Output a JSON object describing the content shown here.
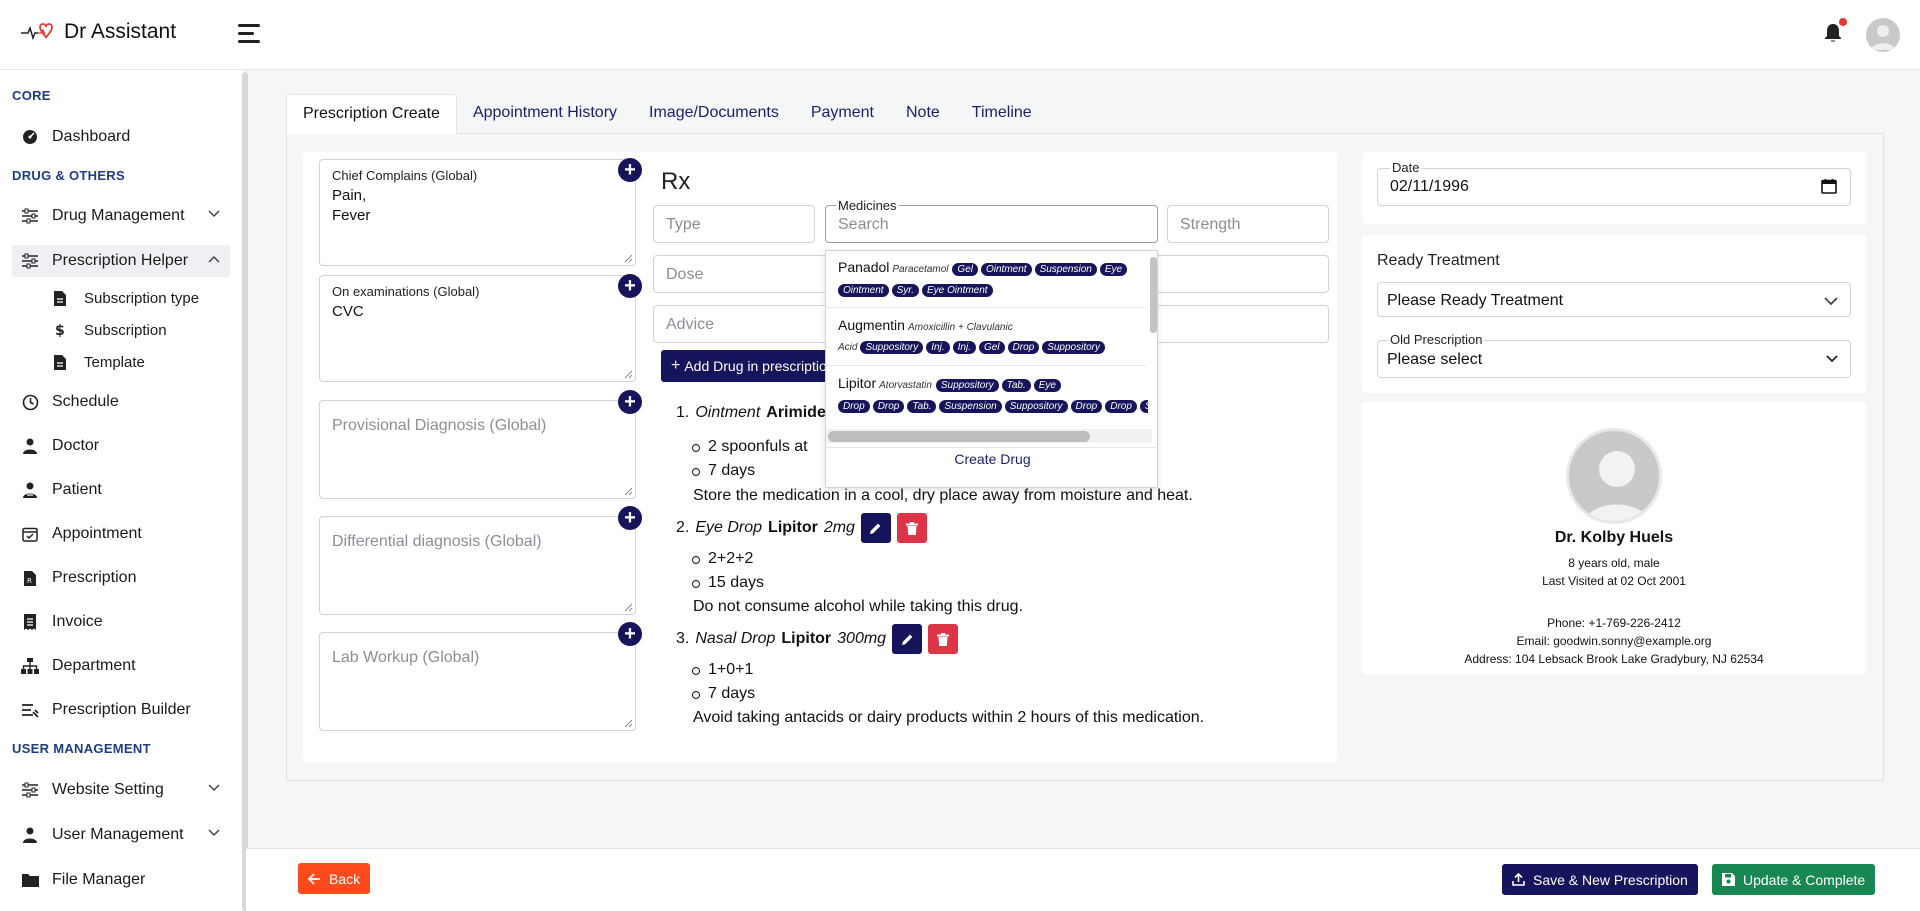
{
  "brand": {
    "name": "Dr Assistant"
  },
  "sidebar": {
    "sections": {
      "core": "CORE",
      "drug": "DRUG & OTHERS",
      "user": "USER MANAGEMENT"
    },
    "items": {
      "dashboard": "Dashboard",
      "drug_management": "Drug Management",
      "prescription_helper": "Prescription Helper",
      "subscription_type": "Subscription type",
      "subscription": "Subscription",
      "template": "Template",
      "schedule": "Schedule",
      "doctor": "Doctor",
      "patient": "Patient",
      "appointment": "Appointment",
      "prescription": "Prescription",
      "invoice": "Invoice",
      "department": "Department",
      "prescription_builder": "Prescription Builder",
      "website_setting": "Website Setting",
      "user_management": "User Management",
      "file_manager": "File Manager"
    }
  },
  "tabs": [
    "Prescription Create",
    "Appointment History",
    "Image/Documents",
    "Payment",
    "Note",
    "Timeline"
  ],
  "clinical": {
    "chief_complains": {
      "legend": "Chief Complains (Global)",
      "line1": "Pain,",
      "line2": "Fever"
    },
    "on_examinations": {
      "legend": "On examinations (Global)",
      "value": "CVC"
    },
    "provisional": {
      "placeholder": "Provisional Diagnosis (Global)"
    },
    "differential": {
      "placeholder": "Differential diagnosis (Global)"
    },
    "lab_workup": {
      "placeholder": "Lab Workup (Global)"
    }
  },
  "rx": {
    "title": "Rx",
    "type_placeholder": "Type",
    "medicines_legend": "Medicines",
    "search_placeholder": "Search",
    "strength_placeholder": "Strength",
    "dose_placeholder": "Dose",
    "advice_placeholder": "Advice",
    "add_drug_label": "Add Drug in prescription",
    "drugs": [
      {
        "num": "1.",
        "type": "Ointment",
        "name": "Arimidex",
        "dose": "2 spoonfuls at",
        "duration": "7 days",
        "advice": "Store the medication in a cool, dry place away from moisture and heat."
      },
      {
        "num": "2.",
        "type": "Eye Drop",
        "name": "Lipitor",
        "strength": "2mg",
        "dose": "2+2+2",
        "duration": "15 days",
        "advice": "Do not consume alcohol while taking this drug."
      },
      {
        "num": "3.",
        "type": "Nasal Drop",
        "name": "Lipitor",
        "strength": "300mg",
        "dose": "1+0+1",
        "duration": "7 days",
        "advice": "Avoid taking antacids or dairy products within 2 hours of this medication."
      }
    ]
  },
  "dropdown": {
    "items": [
      {
        "name": "Panadol",
        "generic": "Paracetamol",
        "forms_line1": [
          "Gel",
          "Ointment",
          "Suspension",
          "Eye"
        ],
        "forms_line2": [
          "Ointment",
          "Syr.",
          "Eye Ointment"
        ]
      },
      {
        "name": "Augmentin",
        "generic": "Amoxicillin + Clavulanic",
        "generic2": "Acid",
        "forms_line2": [
          "Suppository",
          "Inj.",
          "Inj.",
          "Gel",
          "Drop",
          "Suppository"
        ]
      },
      {
        "name": "Lipitor",
        "generic": "Atorvastatin",
        "forms_line1": [
          "Suppository",
          "Tab.",
          "Eye"
        ],
        "forms_line2": [
          "Drop",
          "Drop",
          "Tab.",
          "Suspension",
          "Suppository",
          "Drop",
          "Drop",
          "S"
        ]
      }
    ],
    "create_label": "Create Drug"
  },
  "right": {
    "date_legend": "Date",
    "date_value": "02/11/1996",
    "ready_treatment_label": "Ready Treatment",
    "ready_treatment_value": "Please Ready Treatment",
    "old_prescription_legend": "Old Prescription",
    "old_prescription_value": "Please select"
  },
  "patient": {
    "name": "Dr. Kolby Huels",
    "age_gender": "8 years old, male",
    "last_visited": "Last Visited at 02 Oct 2001",
    "phone": "Phone: +1-769-226-2412",
    "email": "Email: goodwin.sonny@example.org",
    "address": "Address: 104 Lebsack Brook Lake Gradybury, NJ 62534"
  },
  "footer": {
    "back": "Back",
    "save_new": "Save & New Prescription",
    "update": "Update & Complete"
  },
  "colors": {
    "primary": "#16145a",
    "danger": "#dc3545",
    "back": "#ff4a1c",
    "success": "#198754",
    "section": "#1f3c88"
  }
}
